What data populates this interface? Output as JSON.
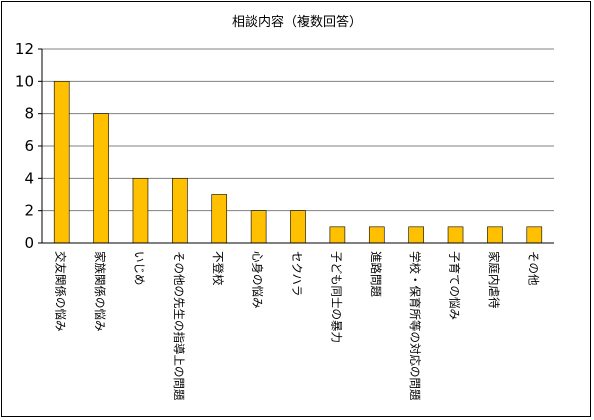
{
  "chart_data": {
    "type": "bar",
    "title": "相談内容（複数回答）",
    "categories": [
      "交友関係の悩み",
      "家族関係の悩み",
      "いじめ",
      "その他の先生の指導上の問題",
      "不登校",
      "心身の悩み",
      "セクハラ",
      "子ども同士の暴力",
      "進路問題",
      "学校・保育所等の対応の問題",
      "子育ての悩み",
      "家庭内虐待",
      "その他"
    ],
    "values": [
      10,
      8,
      4,
      4,
      3,
      2,
      2,
      1,
      1,
      1,
      1,
      1,
      1
    ],
    "ylim": [
      0,
      12
    ],
    "yticks": [
      0,
      2,
      4,
      6,
      8,
      10,
      12
    ],
    "grid": true,
    "legend": "none",
    "bar_color": "#FFC000",
    "bar_edge_color": "#000000",
    "grid_color": "#808080"
  }
}
